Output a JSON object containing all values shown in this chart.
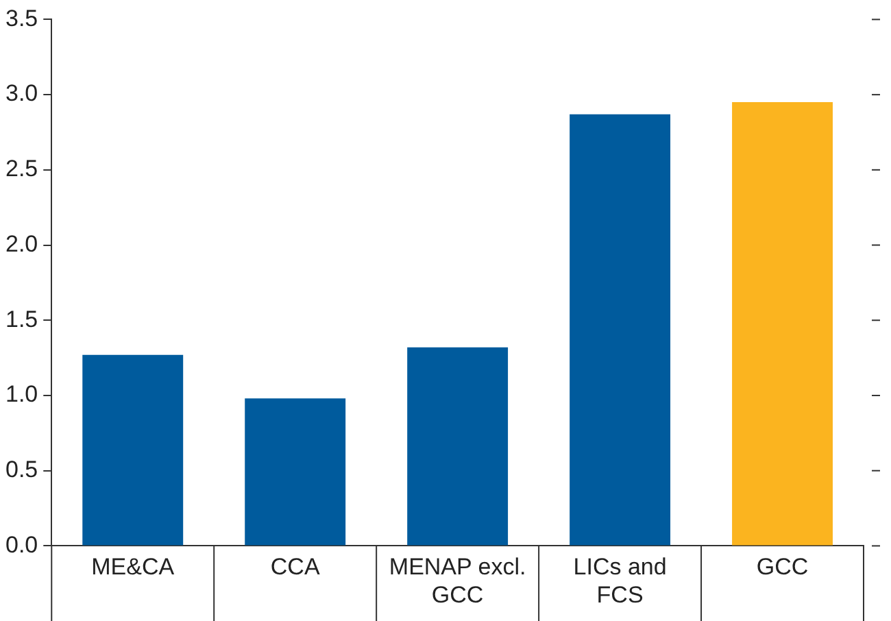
{
  "chart_data": {
    "type": "bar",
    "categories": [
      "ME&CA",
      "CCA",
      "MENAP excl. GCC",
      "LICs and FCS",
      "GCC"
    ],
    "values": [
      1.27,
      0.98,
      1.32,
      2.87,
      2.95
    ],
    "colors": [
      "#005b9d",
      "#005b9d",
      "#005b9d",
      "#005b9d",
      "#fbb41f"
    ],
    "ylim": [
      0,
      3.5
    ],
    "yticks": [
      {
        "value": 0,
        "label": "0.0"
      },
      {
        "value": 0.5,
        "label": "0.5"
      },
      {
        "value": 1,
        "label": "1.0"
      },
      {
        "value": 1.5,
        "label": "1.5"
      },
      {
        "value": 2,
        "label": "2.0"
      },
      {
        "value": 2.5,
        "label": "2.5"
      },
      {
        "value": 3,
        "label": "3.0"
      },
      {
        "value": 3.5,
        "label": "3.5"
      }
    ],
    "grid": false,
    "legend": false
  }
}
